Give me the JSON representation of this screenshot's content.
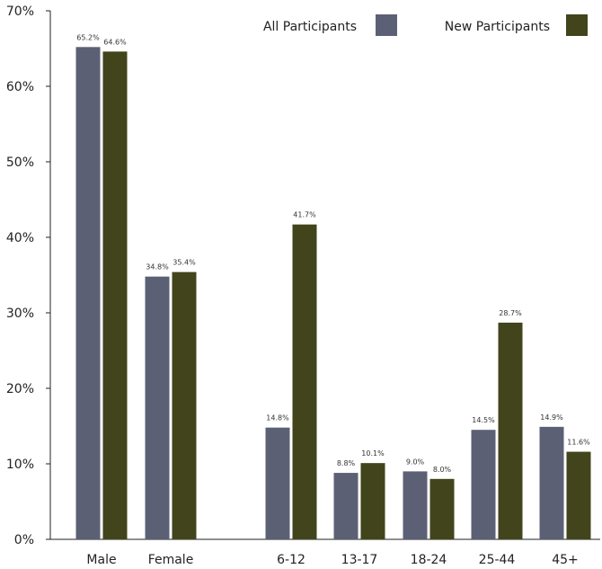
{
  "chart_data": {
    "type": "bar",
    "categories": [
      "Male",
      "Female",
      "6-12",
      "13-17",
      "18-24",
      "25-44",
      "45+"
    ],
    "series": [
      {
        "name": "All Participants",
        "color": "#5c6075",
        "values": [
          65.2,
          34.8,
          14.8,
          8.8,
          9.0,
          14.5,
          14.9
        ],
        "labels": [
          "65.2%",
          "34.8%",
          "14.8%",
          "8.8%",
          "9.0%",
          "14.5%",
          "14.9%"
        ]
      },
      {
        "name": "New Participants",
        "color": "#42441c",
        "values": [
          64.6,
          35.4,
          41.7,
          10.1,
          8.0,
          28.7,
          11.6
        ],
        "labels": [
          "64.6%",
          "35.4%",
          "41.7%",
          "10.1%",
          "8.0%",
          "28.7%",
          "11.6%"
        ]
      }
    ],
    "yticks": [
      "0%",
      "10%",
      "20%",
      "30%",
      "40%",
      "50%",
      "60%",
      "70%"
    ],
    "ylim": [
      0,
      70
    ],
    "grid": false,
    "legend_position": "top-right"
  }
}
